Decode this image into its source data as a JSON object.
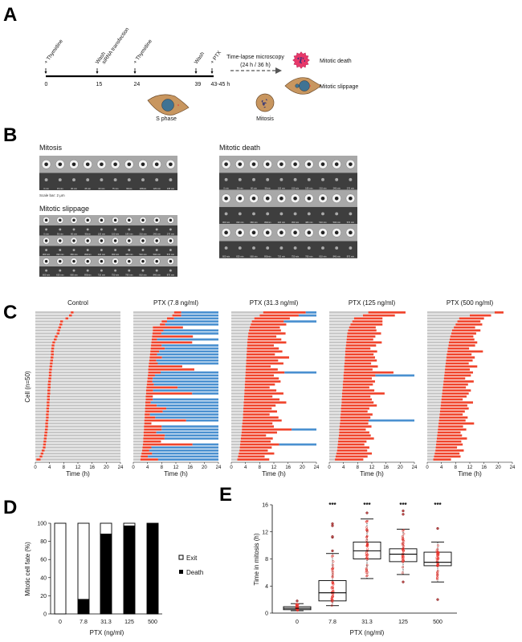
{
  "panel_labels": {
    "a": "A",
    "b": "B",
    "c": "C",
    "d": "D",
    "e": "E"
  },
  "panel_a": {
    "events": [
      {
        "time_label": "0",
        "annotations": [
          "+ Thymidine"
        ]
      },
      {
        "time_label": "15",
        "annotations": [
          "Wash",
          "siRNA transfection"
        ]
      },
      {
        "time_label": "24",
        "annotations": [
          "+ Thymidine"
        ]
      },
      {
        "time_label": "39",
        "annotations": [
          "Wash"
        ]
      },
      {
        "time_label": "43-45 h",
        "annotations": [
          "+ PTX"
        ]
      }
    ],
    "arrow_label_1": "Time-lapse microscopy",
    "arrow_label_2": "(24 h / 36 h)",
    "outcome_death": "Mitotic death",
    "outcome_slippage": "Mitotic slippage",
    "cell_s_phase": "S phase",
    "cell_mitosis": "Mitosis",
    "colors": {
      "cell_body": "#c8965f",
      "nucleus": "#3f7394",
      "death_cell": "#e8386a",
      "chromosomes": "#2a2f7a"
    }
  },
  "panel_b": {
    "mitosis": {
      "title": "Mitosis",
      "times": [
        "0 min",
        "15 min",
        "30 min",
        "45 min",
        "60 min",
        "75 min",
        "90min",
        "105min",
        "120 min",
        "135 min"
      ]
    },
    "scale_bar": "Scale bar: 2 μm",
    "slippage": {
      "title": "Mitotic slippage",
      "times": [
        [
          "0 min",
          "30 min",
          "60 min",
          "90min",
          "120 min",
          "150 min",
          "180 min",
          "210 min",
          "240 min",
          "270 min"
        ],
        [
          "300 min",
          "330 min",
          "360 min",
          "390min",
          "420 min",
          "450 min",
          "480 min",
          "510 min",
          "540 min",
          "570 min"
        ],
        [
          "600 min",
          "630 min",
          "660 min",
          "690min",
          "720 min",
          "750 min",
          "780 min",
          "810 min",
          "840 min",
          "870 min"
        ]
      ]
    },
    "death": {
      "title": "Mitotic death",
      "times": [
        [
          "0 min",
          "30 min",
          "60 min",
          "90min",
          "120 min",
          "150 min",
          "180 min",
          "210 min",
          "240 min",
          "270 min"
        ],
        [
          "300 min",
          "330 min",
          "360 min",
          "390min",
          "420 min",
          "450 min",
          "480 min",
          "510 min",
          "540 min",
          "570 min"
        ],
        [
          "600 min",
          "630 min",
          "660 min",
          "690min",
          "720 min",
          "750 min",
          "780 min",
          "810 min",
          "840 min",
          "870 min"
        ]
      ]
    }
  },
  "chart_data": [
    {
      "type": "bar",
      "orientation": "horizontal-timeline",
      "ylabel": "Cell (n=50)",
      "xlabel": "Time (h)",
      "xlim": [
        0,
        24
      ],
      "xticks": [
        "0",
        "4",
        "8",
        "12",
        "16",
        "20",
        "24"
      ],
      "colors": {
        "interphase": "#c8c8c8",
        "mitosis": "#f0452d",
        "post_slippage": "#4a90d0"
      },
      "fate_codes": {
        "N": "normal exit",
        "S": "mitotic slippage",
        "D": "mitotic death"
      },
      "panels": [
        {
          "title": "Control",
          "entry": [
            10,
            9.5,
            8.5,
            7,
            6.8,
            6.5,
            6.2,
            6,
            5.5,
            5.2,
            4.8,
            4.6,
            4.5,
            4.4,
            4.4,
            4.3,
            4.2,
            4.1,
            4,
            3.9,
            3.8,
            3.8,
            3.7,
            3.6,
            3.5,
            3.5,
            3.4,
            3.4,
            3.3,
            3.3,
            3.2,
            3.2,
            3.1,
            3.1,
            3,
            3,
            2.9,
            2.8,
            2.8,
            2.7,
            2.6,
            2.5,
            2.4,
            2.3,
            2.2,
            2.1,
            1.8,
            1.5,
            1.2,
            0.3
          ],
          "duration": [
            0.8,
            0.8,
            0.8,
            0.8,
            0.8,
            0.8,
            0.8,
            0.8,
            0.8,
            0.8,
            0.8,
            0.8,
            0.8,
            0.8,
            0.8,
            0.8,
            0.8,
            0.8,
            0.8,
            0.8,
            0.8,
            0.8,
            0.8,
            0.8,
            0.8,
            0.8,
            0.8,
            0.8,
            0.8,
            0.8,
            0.8,
            0.8,
            0.8,
            0.8,
            0.8,
            0.8,
            0.8,
            0.8,
            0.8,
            0.8,
            0.8,
            0.8,
            0.8,
            0.8,
            0.8,
            0.8,
            0.8,
            0.8,
            0.8,
            1.2
          ],
          "fate": "NNNNNNNNNNNNNNNNNNNNNNNNNNNNNNNNNNNNNNNNNNNNNNNNNN"
        },
        {
          "title": "PTX (7.8 ng/ml)",
          "entry": [
            11.5,
            11,
            9.5,
            8,
            7.5,
            5.5,
            5.5,
            5.4,
            5.3,
            5.2,
            5.1,
            5,
            4.9,
            4.8,
            4.7,
            4.6,
            4.5,
            4.4,
            4.3,
            4.2,
            4.2,
            4.1,
            4,
            3.9,
            3.8,
            3.7,
            3.6,
            3.6,
            3.5,
            3.5,
            3.4,
            3.4,
            3.3,
            3.3,
            3.2,
            3.2,
            3.1,
            3.1,
            3,
            3,
            2.9,
            2.9,
            2.8,
            2.8,
            2.7,
            2.6,
            2.5,
            2.3,
            2.1,
            2
          ],
          "duration": [
            2,
            2.5,
            2,
            1.5,
            1.5,
            8.5,
            3,
            2.5,
            11.5,
            1.5,
            11.5,
            3,
            4,
            2.5,
            2,
            3.5,
            2,
            2.5,
            9.5,
            13,
            3.5,
            2,
            1.5,
            1.5,
            2,
            8.8,
            2,
            13,
            2,
            2,
            1.5,
            3.2,
            6,
            5,
            1.5,
            3,
            11.8,
            2,
            5,
            5,
            3.6,
            6,
            6,
            5,
            14,
            2.5,
            2,
            3,
            2,
            5
          ],
          "fate": "SSSSSDSSDSDSSSSSSSDDSSSSSSSSDSSSSSSSSDSSSSSDSSSSSS"
        },
        {
          "title": "PTX (31.3 ng/ml)",
          "entry": [
            9,
            8,
            6.5,
            5.8,
            5.5,
            5.2,
            5,
            4.8,
            4.7,
            4.6,
            4.5,
            4.5,
            4.4,
            4.4,
            4.3,
            4.3,
            4.2,
            4.2,
            4.1,
            4.1,
            4,
            4,
            3.9,
            3.9,
            3.8,
            3.8,
            3.7,
            3.7,
            3.6,
            3.6,
            3.5,
            3.5,
            3.4,
            3.4,
            3.3,
            3.3,
            3.2,
            3.1,
            3,
            3,
            2.9,
            2.8,
            2.7,
            2.6,
            2.5,
            2.4,
            2.3,
            2.1,
            1.9,
            1.7
          ],
          "duration": [
            12,
            11,
            10,
            9,
            10,
            8.5,
            9,
            10.5,
            8,
            9.5,
            11,
            7.5,
            9,
            10,
            8,
            12,
            9,
            10.5,
            7,
            9,
            11,
            8,
            9.5,
            10,
            8.5,
            7,
            9,
            11,
            8,
            10,
            12,
            9,
            8,
            9.5,
            7.5,
            10,
            11,
            8.5,
            9,
            14,
            10,
            7,
            9,
            8.5,
            11,
            9,
            8,
            10,
            7.5,
            9
          ],
          "fate": "SSDSDDDDDDDDDDDDDDDDSDDDDDDDDDDDDDDDDDDSDDDDSDDDDD"
        },
        {
          "title": "PTX (125 ng/ml)",
          "entry": [
            11,
            9.5,
            7,
            6.5,
            6,
            5.6,
            5.3,
            5.1,
            5,
            4.9,
            4.8,
            4.7,
            4.6,
            4.5,
            4.5,
            4.4,
            4.4,
            4.3,
            4.2,
            4.2,
            4.1,
            4,
            4,
            3.9,
            3.8,
            3.8,
            3.7,
            3.6,
            3.6,
            3.5,
            3.5,
            3.4,
            3.3,
            3.3,
            3.2,
            3.1,
            3.1,
            3,
            2.9,
            2.8,
            2.8,
            2.7,
            2.6,
            2.5,
            2.4,
            2.3,
            2.2,
            2,
            1.8,
            1.6
          ],
          "duration": [
            10.5,
            9,
            8,
            8.5,
            9,
            7.5,
            8,
            9.5,
            8,
            7.5,
            10,
            8.5,
            7,
            9,
            8,
            8.5,
            9,
            7.5,
            9.5,
            8,
            14,
            9,
            8,
            9,
            8.5,
            7.5,
            9,
            12,
            8,
            8.5,
            9,
            10,
            8,
            7.5,
            9,
            8.5,
            8,
            8,
            9,
            7.5,
            8.5,
            9,
            10,
            8,
            7.5,
            9,
            8.5,
            10,
            9,
            8
          ],
          "fate": "DDDDDDDDDDDDDDDDDDDDDSDDDDDDDDDDDDDDSDDDDDDDDDDDDD"
        },
        {
          "title": "PTX (500 ng/ml)",
          "entry": [
            19,
            12,
            9,
            8.5,
            8,
            7.5,
            7,
            6.8,
            6.5,
            6.3,
            6.1,
            6,
            5.8,
            5.7,
            5.5,
            5.4,
            5.3,
            5.2,
            5.1,
            5,
            4.9,
            4.8,
            4.7,
            4.6,
            4.5,
            4.4,
            4.3,
            4.2,
            4.1,
            4,
            3.9,
            3.8,
            3.7,
            3.6,
            3.5,
            3.4,
            3.3,
            3.2,
            3.1,
            3,
            2.9,
            2.8,
            2.7,
            2.6,
            2.5,
            2.4,
            2.3,
            2.1,
            1.9,
            1.7
          ],
          "duration": [
            2.5,
            6,
            7,
            6.5,
            7.5,
            6,
            8,
            7,
            6.5,
            7,
            8,
            7.5,
            6,
            10,
            7,
            8,
            7.5,
            6.5,
            9,
            7,
            8,
            7.5,
            6,
            8.5,
            7,
            6.5,
            8,
            7.5,
            7,
            6,
            9,
            7.5,
            8,
            7,
            6.5,
            8,
            7.5,
            10,
            7,
            8,
            6.5,
            7,
            8.5,
            7,
            7.5,
            6,
            8,
            7,
            7.5,
            5
          ],
          "fate": "DDDDDDDDDDDDDDDDDDDDDDDDDDDDDDDDDDDDDDDDDDDDDDDDDD"
        }
      ]
    },
    {
      "type": "bar",
      "stacked": true,
      "categories": [
        "0",
        "7.8",
        "31.3",
        "125",
        "500"
      ],
      "series": [
        {
          "name": "Death",
          "values": [
            0,
            16,
            88,
            97,
            100
          ],
          "color": "#000000"
        },
        {
          "name": "Exit",
          "values": [
            100,
            84,
            12,
            3,
            0
          ],
          "color": "#ffffff"
        }
      ],
      "xlabel": "PTX (ng/ml)",
      "ylabel": "Mitotic cell fate (%)",
      "ylim": [
        0,
        100
      ],
      "yticks": [
        "0",
        "20",
        "40",
        "60",
        "80",
        "100"
      ],
      "legend": "right"
    },
    {
      "type": "box",
      "categories": [
        "0",
        "7.8",
        "31.3",
        "125",
        "500"
      ],
      "boxes": [
        {
          "q1": 0.5,
          "median": 0.7,
          "q3": 0.95,
          "whisker_low": 0.35,
          "whisker_high": 1.4,
          "outliers": [
            1.8
          ],
          "significance": ""
        },
        {
          "q1": 1.8,
          "median": 3.0,
          "q3": 4.8,
          "whisker_low": 1.1,
          "whisker_high": 8.8,
          "outliers": [
            9.2,
            11.2,
            11.3,
            12.9,
            13.2
          ],
          "significance": "***"
        },
        {
          "q1": 8.0,
          "median": 9.2,
          "q3": 10.5,
          "whisker_low": 5.1,
          "whisker_high": 13.9,
          "outliers": [
            14.8
          ],
          "significance": "***"
        },
        {
          "q1": 7.6,
          "median": 8.7,
          "q3": 9.5,
          "whisker_low": 5.7,
          "whisker_high": 12.4,
          "outliers": [
            4.6,
            14.6,
            15.1
          ],
          "significance": "***"
        },
        {
          "q1": 7.0,
          "median": 7.5,
          "q3": 9.0,
          "whisker_low": 4.6,
          "whisker_high": 10.5,
          "outliers": [
            2.0,
            12.5
          ],
          "significance": "***"
        }
      ],
      "xlabel": "PTX (ng/ml)",
      "ylabel": "Time in mitosis (h)",
      "ylim": [
        0,
        16
      ],
      "yticks": [
        "0",
        "4",
        "8",
        "12",
        "16"
      ],
      "point_color": "#e8322b"
    }
  ]
}
